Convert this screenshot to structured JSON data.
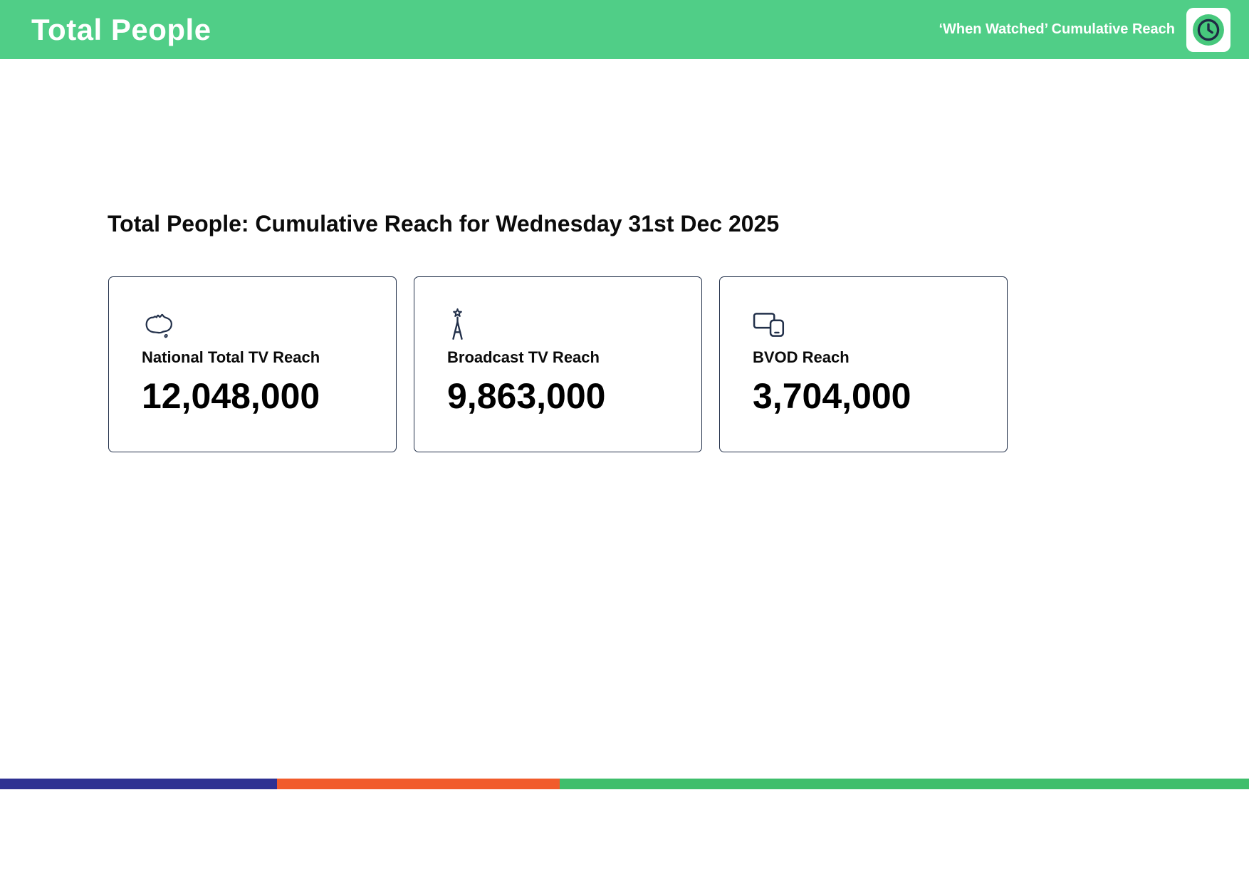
{
  "header": {
    "title": "Total People",
    "subtitle": "‘When Watched’ Cumulative Reach",
    "bg_color": "#50CE87",
    "badge_icon": "clock-icon"
  },
  "main": {
    "heading": "Total People: Cumulative Reach for Wednesday 31st Dec 2025",
    "cards": [
      {
        "icon": "australia-map-icon",
        "label": "National Total TV Reach",
        "value": "12,048,000"
      },
      {
        "icon": "broadcast-tower-icon",
        "label": "Broadcast TV Reach",
        "value": "9,863,000"
      },
      {
        "icon": "tv-devices-icon",
        "label": "BVOD Reach",
        "value": "3,704,000"
      }
    ],
    "card_border_color": "#22304A",
    "icon_color": "#22304A"
  },
  "footer": {
    "segments": [
      {
        "name": "navy",
        "color": "#2E3192",
        "width_pct": 22.2
      },
      {
        "name": "orange",
        "color": "#F15B2B",
        "width_pct": 22.6
      },
      {
        "name": "green",
        "color": "#3FBE6B",
        "width_pct": 55.2
      }
    ]
  }
}
